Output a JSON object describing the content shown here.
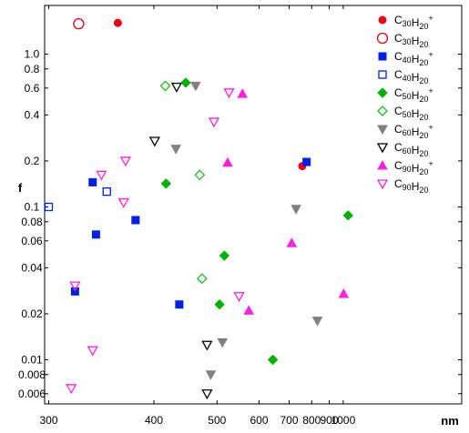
{
  "chart_data": {
    "type": "scatter",
    "title": "",
    "xlabel": "nm",
    "ylabel": "f",
    "x_scale": "reciprocal",
    "y_scale": "log",
    "xlim": [
      300,
      1100
    ],
    "ylim": [
      0.006,
      2.5
    ],
    "x_ticks": [
      {
        "value": 300,
        "label": "300"
      },
      {
        "value": 400,
        "label": "400"
      },
      {
        "value": 500,
        "label": "500"
      },
      {
        "value": 600,
        "label": "600"
      },
      {
        "value": 700,
        "label": "700"
      },
      {
        "value": 800,
        "label": "800"
      },
      {
        "value": 900,
        "label": "900"
      },
      {
        "value": 1000,
        "label": "1000"
      }
    ],
    "y_ticks": [
      {
        "value": 1.0,
        "label": "1.0"
      },
      {
        "value": 0.8,
        "label": "0.8"
      },
      {
        "value": 0.6,
        "label": "0.6"
      },
      {
        "value": 0.4,
        "label": "0.4"
      },
      {
        "value": 0.2,
        "label": "0.2"
      },
      {
        "value": 0.1,
        "label": "0.1"
      },
      {
        "value": 0.08,
        "label": "0.08"
      },
      {
        "value": 0.06,
        "label": "0.06"
      },
      {
        "value": 0.04,
        "label": "0.04"
      },
      {
        "value": 0.02,
        "label": "0.02"
      },
      {
        "value": 0.01,
        "label": "0.01"
      },
      {
        "value": 0.008,
        "label": "0.008"
      },
      {
        "value": 0.006,
        "label": "0.006"
      }
    ],
    "grid": false,
    "legend_position": "top-right",
    "series": [
      {
        "base": "C",
        "n1": "30",
        "mid": "H",
        "n2": "20",
        "charge": "+",
        "marker": "circle",
        "filled": true,
        "color": "#e8001c",
        "points": [
          [
            359,
            1.6
          ],
          [
            755,
            0.185
          ]
        ]
      },
      {
        "base": "C",
        "n1": "30",
        "mid": "H",
        "n2": "20",
        "charge": "",
        "marker": "circle",
        "filled": false,
        "color": "#e8001c",
        "points": [
          [
            323,
            1.58
          ]
        ]
      },
      {
        "base": "C",
        "n1": "40",
        "mid": "H",
        "n2": "20",
        "charge": "+",
        "marker": "square",
        "filled": true,
        "color": "#0020e0",
        "points": [
          [
            335,
            0.145
          ],
          [
            338,
            0.066
          ],
          [
            320,
            0.028
          ],
          [
            378,
            0.082
          ],
          [
            435,
            0.023
          ],
          [
            775,
            0.197
          ]
        ]
      },
      {
        "base": "C",
        "n1": "40",
        "mid": "H",
        "n2": "20",
        "charge": "",
        "marker": "square",
        "filled": false,
        "color": "#0020e0",
        "points": [
          [
            300,
            0.1
          ],
          [
            348,
            0.126
          ]
        ]
      },
      {
        "base": "C",
        "n1": "50",
        "mid": "H",
        "n2": "20",
        "charge": "+",
        "marker": "diamond",
        "filled": true,
        "color": "#00b000",
        "points": [
          [
            445,
            0.65
          ],
          [
            416,
            0.142
          ],
          [
            515,
            0.048
          ],
          [
            505,
            0.023
          ],
          [
            642,
            0.01
          ],
          [
            1040,
            0.088
          ]
        ]
      },
      {
        "base": "C",
        "n1": "50",
        "mid": "H",
        "n2": "20",
        "charge": "",
        "marker": "diamond",
        "filled": false,
        "color": "#22bb22",
        "points": [
          [
            415,
            0.62
          ],
          [
            468,
            0.162
          ],
          [
            472,
            0.034
          ]
        ]
      },
      {
        "base": "C",
        "n1": "60",
        "mid": "H",
        "n2": "20",
        "charge": "+",
        "marker": "triangle-down",
        "filled": true,
        "color": "#808080",
        "points": [
          [
            461,
            0.62
          ],
          [
            430,
            0.24
          ],
          [
            728,
            0.097
          ],
          [
            511,
            0.013
          ],
          [
            488,
            0.008
          ],
          [
            830,
            0.018
          ]
        ]
      },
      {
        "base": "C",
        "n1": "60",
        "mid": "H",
        "n2": "20",
        "charge": "",
        "marker": "triangle-down",
        "filled": false,
        "color": "#000000",
        "points": [
          [
            431,
            0.61
          ],
          [
            401,
            0.27
          ],
          [
            481,
            0.0125
          ],
          [
            481,
            0.006
          ]
        ]
      },
      {
        "base": "C",
        "n1": "90",
        "mid": "H",
        "n2": "20",
        "charge": "+",
        "marker": "triangle-up",
        "filled": true,
        "color": "#ff22dd",
        "points": [
          [
            556,
            0.55
          ],
          [
            522,
            0.195
          ],
          [
            572,
            0.021
          ],
          [
            710,
            0.058
          ],
          [
            1003,
            0.027
          ]
        ]
      },
      {
        "base": "C",
        "n1": "90",
        "mid": "H",
        "n2": "20",
        "charge": "",
        "marker": "triangle-down",
        "filled": false,
        "color": "#ff22dd",
        "points": [
          [
            525,
            0.56
          ],
          [
            494,
            0.36
          ],
          [
            367,
            0.2
          ],
          [
            343,
            0.162
          ],
          [
            365,
            0.107
          ],
          [
            320,
            0.0305
          ],
          [
            548,
            0.026
          ],
          [
            335,
            0.0115
          ],
          [
            317,
            0.0065
          ]
        ]
      }
    ]
  }
}
